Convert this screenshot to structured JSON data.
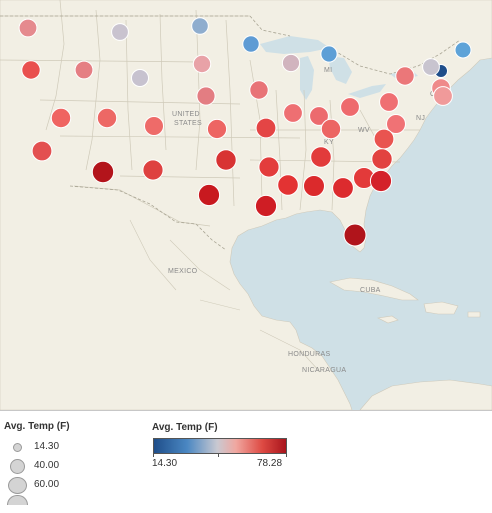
{
  "map": {
    "place_labels": [
      {
        "id": "mi",
        "text": "MI"
      },
      {
        "id": "united",
        "text": "UNITED"
      },
      {
        "id": "states",
        "text": "STATES"
      },
      {
        "id": "ct",
        "text": "CT"
      },
      {
        "id": "nj",
        "text": "NJ"
      },
      {
        "id": "wv",
        "text": "WV"
      },
      {
        "id": "ky",
        "text": "KY"
      },
      {
        "id": "mexico",
        "text": "MEXICO"
      },
      {
        "id": "cuba",
        "text": "CUBA"
      },
      {
        "id": "honduras",
        "text": "HONDURAS"
      },
      {
        "id": "nicaragua",
        "text": "NICARAGUA"
      }
    ],
    "colors": {
      "water": "#cfe0e6",
      "land": "#f2efe4",
      "border": "#c7c3b3",
      "label": "#8a8a8a"
    }
  },
  "legend_size": {
    "title": "Avg. Temp (F)",
    "items": [
      "14.30",
      "40.00",
      "60.00",
      ""
    ]
  },
  "legend_color": {
    "title": "Avg. Temp (F)",
    "min_label": "14.30",
    "max_label": "78.28",
    "min_color": "#1f4e8a",
    "max_color": "#a8141c"
  },
  "markers": [
    {
      "state": "WA",
      "temp": 48.0,
      "color": "#e58a8e"
    },
    {
      "state": "OR",
      "temp": 52.5,
      "color": "#e9504f"
    },
    {
      "state": "MT",
      "temp": 42.0,
      "color": "#c9c3cf"
    },
    {
      "state": "ID",
      "temp": 49.0,
      "color": "#e57e83"
    },
    {
      "state": "WY",
      "temp": 42.5,
      "color": "#c7c2cf"
    },
    {
      "state": "ND",
      "temp": 39.5,
      "color": "#8fadce"
    },
    {
      "state": "SD",
      "temp": 46.0,
      "color": "#e8a2a7"
    },
    {
      "state": "MN",
      "temp": 38.5,
      "color": "#5e9bd4"
    },
    {
      "state": "WI",
      "temp": 44.5,
      "color": "#d1b4be"
    },
    {
      "state": "MI",
      "temp": 37.0,
      "color": "#5e9fd6"
    },
    {
      "state": "ME",
      "temp": 36.0,
      "color": "#5ea3d8"
    },
    {
      "state": "VT",
      "temp": 14.3,
      "color": "#1f4e8a"
    },
    {
      "state": "NH",
      "temp": 41.0,
      "color": "#c8c4cf"
    },
    {
      "state": "NY",
      "temp": 53.0,
      "color": "#eb7779"
    },
    {
      "state": "MA",
      "temp": 54.0,
      "color": "#ef8a8a"
    },
    {
      "state": "RI",
      "temp": 55.0,
      "color": "#f09a9a"
    },
    {
      "state": "NE",
      "temp": 51.5,
      "color": "#e37d82"
    },
    {
      "state": "IA",
      "temp": 52.0,
      "color": "#e87377"
    },
    {
      "state": "IL",
      "temp": 55.0,
      "color": "#ee6f72"
    },
    {
      "state": "IN",
      "temp": 56.0,
      "color": "#ec6a6e"
    },
    {
      "state": "OH",
      "temp": 55.5,
      "color": "#ee6a6d"
    },
    {
      "state": "PA",
      "temp": 56.0,
      "color": "#ef6f72"
    },
    {
      "state": "NJ",
      "temp": 57.0,
      "color": "#f07275"
    },
    {
      "state": "CA",
      "temp": 62.0,
      "color": "#e35050"
    },
    {
      "state": "NV",
      "temp": 60.0,
      "color": "#ef6461"
    },
    {
      "state": "UT",
      "temp": 59.5,
      "color": "#ed6865"
    },
    {
      "state": "CO",
      "temp": 57.0,
      "color": "#ee6b69"
    },
    {
      "state": "KS",
      "temp": 59.0,
      "color": "#ed6563"
    },
    {
      "state": "MO",
      "temp": 62.0,
      "color": "#e44545"
    },
    {
      "state": "KY",
      "temp": 60.0,
      "color": "#ec6563"
    },
    {
      "state": "VA",
      "temp": 62.5,
      "color": "#e95450"
    },
    {
      "state": "AZ",
      "temp": 74.0,
      "color": "#b3141b"
    },
    {
      "state": "NM",
      "temp": 66.0,
      "color": "#de4140"
    },
    {
      "state": "OK",
      "temp": 67.0,
      "color": "#d83333"
    },
    {
      "state": "TN",
      "temp": 66.0,
      "color": "#e33c3c"
    },
    {
      "state": "NC",
      "temp": 66.5,
      "color": "#e24240"
    },
    {
      "state": "SC",
      "temp": 68.0,
      "color": "#e23b3b"
    },
    {
      "state": "AR",
      "temp": 68.0,
      "color": "#e33333"
    },
    {
      "state": "MS",
      "temp": 70.5,
      "color": "#db2a2c"
    },
    {
      "state": "AL",
      "temp": 70.0,
      "color": "#dc2b2e"
    },
    {
      "state": "GA",
      "temp": 70.5,
      "color": "#e33a3a"
    },
    {
      "state": "SC2",
      "temp": 72.0,
      "color": "#d4222a"
    },
    {
      "state": "TX",
      "temp": 73.0,
      "color": "#c8191f"
    },
    {
      "state": "LA",
      "temp": 73.0,
      "color": "#cf1d24"
    },
    {
      "state": "FL",
      "temp": 78.28,
      "color": "#b0141b"
    }
  ]
}
